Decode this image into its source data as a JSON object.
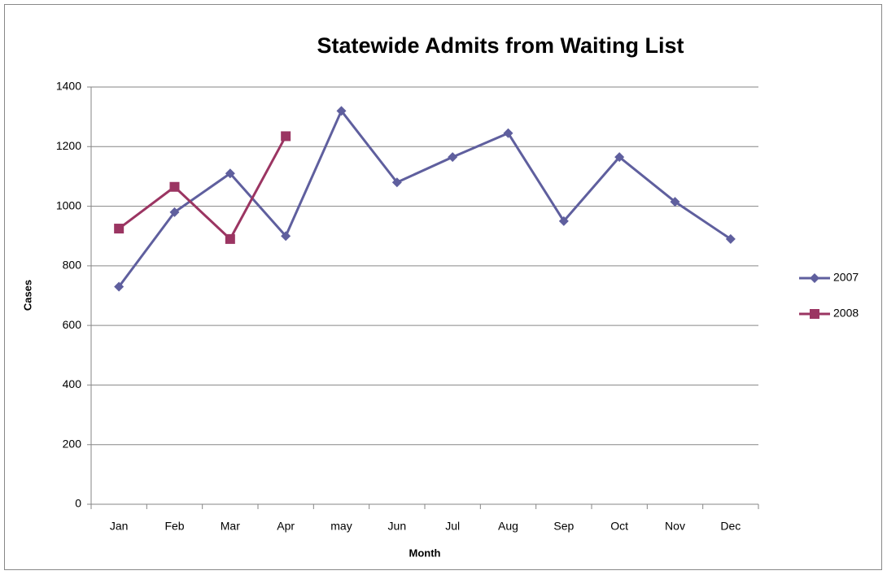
{
  "chart_data": {
    "type": "line",
    "title": "Statewide Admits from Waiting List",
    "x_label": "Month",
    "y_label": "Cases",
    "categories": [
      "Jan",
      "Feb",
      "Mar",
      "Apr",
      "may",
      "Jun",
      "Jul",
      "Aug",
      "Sep",
      "Oct",
      "Nov",
      "Dec"
    ],
    "series": [
      {
        "name": "2007",
        "color": "#5f5f9e",
        "marker": "diamond",
        "values": [
          730,
          980,
          1110,
          900,
          1320,
          1080,
          1165,
          1245,
          950,
          1165,
          1015,
          890
        ]
      },
      {
        "name": "2008",
        "color": "#9b3562",
        "marker": "square",
        "values": [
          925,
          1065,
          890,
          1235,
          null,
          null,
          null,
          null,
          null,
          null,
          null,
          null
        ]
      }
    ],
    "ylim": [
      0,
      1400
    ],
    "yticks": [
      0,
      200,
      400,
      600,
      800,
      1000,
      1200,
      1400
    ],
    "grid": true,
    "legend": "right"
  }
}
